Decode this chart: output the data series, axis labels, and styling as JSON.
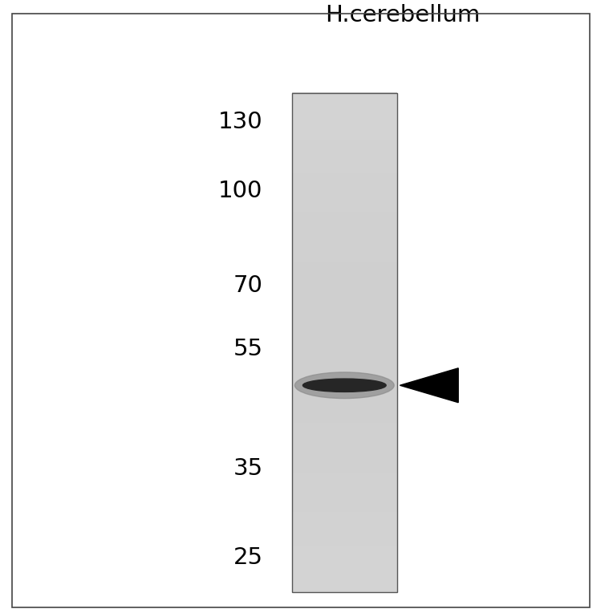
{
  "title": "H.cerebellum",
  "mw_markers": [
    130,
    100,
    70,
    55,
    35,
    25
  ],
  "background_color": "#ffffff",
  "border_color": "#555555",
  "band_kda": 48,
  "arrow_color": "#000000",
  "y_min": 22,
  "y_max": 145,
  "title_fontsize": 21,
  "marker_fontsize": 21,
  "lane_gray": 0.83,
  "band_gray": 0.15,
  "band_halo_gray": 0.55
}
